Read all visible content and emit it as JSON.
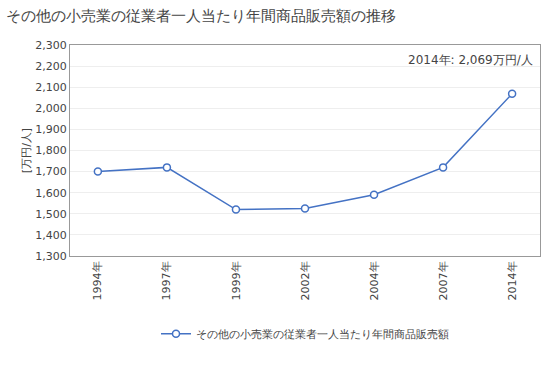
{
  "chart_data": {
    "type": "line",
    "title": "その他の小売業の従業者一人当たり年間商品販売額の推移",
    "y_label": "[万円/人]",
    "annotation": "2014年: 2,069万円/人",
    "categories": [
      "1994年",
      "1997年",
      "1999年",
      "2002年",
      "2004年",
      "2007年",
      "2014年"
    ],
    "series": [
      {
        "name": "その他の小売業の従業者一人当たり年間商品販売額",
        "color": "#4472C4",
        "marker": "open-circle",
        "values": [
          1700,
          1720,
          1520,
          1525,
          1590,
          1720,
          2069
        ]
      }
    ],
    "ylim": [
      1300,
      2300
    ],
    "yticks": [
      {
        "value": 1300,
        "label": "1,300"
      },
      {
        "value": 1400,
        "label": "1,400"
      },
      {
        "value": 1500,
        "label": "1,500"
      },
      {
        "value": 1600,
        "label": "1,600"
      },
      {
        "value": 1700,
        "label": "1,700"
      },
      {
        "value": 1800,
        "label": "1,800"
      },
      {
        "value": 1900,
        "label": "1,900"
      },
      {
        "value": 2000,
        "label": "2,000"
      },
      {
        "value": 2100,
        "label": "2,100"
      },
      {
        "value": 2200,
        "label": "2,200"
      },
      {
        "value": 2300,
        "label": "2,300"
      }
    ],
    "grid": true,
    "legend": "bottom"
  }
}
